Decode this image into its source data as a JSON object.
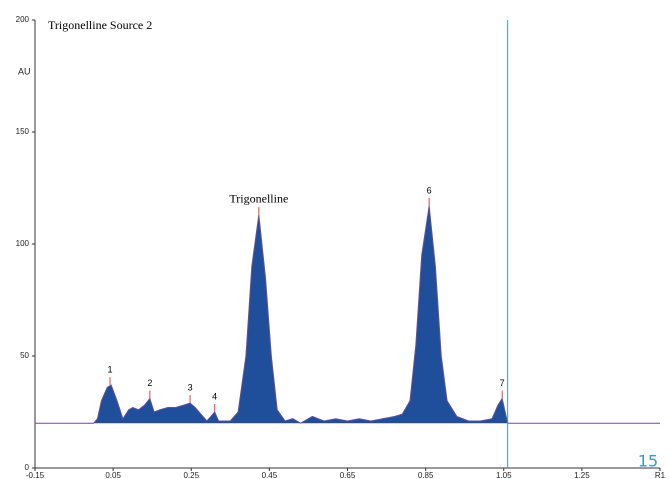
{
  "chart_data": {
    "type": "line",
    "title": "Trigonelline Source 2",
    "y_label": "AU",
    "xlim": [
      -0.15,
      1.45
    ],
    "ylim": [
      0,
      200
    ],
    "xticks": [
      -0.15,
      0.05,
      0.25,
      0.45,
      0.65,
      0.85,
      1.05,
      1.25,
      {
        "value": 1.45,
        "label": "R1"
      }
    ],
    "yticks": [
      0,
      50,
      100,
      150,
      200
    ],
    "color": "#6a4f8e",
    "fill_color": "#1f4f9a",
    "cursor": 1.06,
    "cursor_color": "#3a9ac4",
    "x": [
      -0.15,
      0.0,
      0.01,
      0.02,
      0.035,
      0.045,
      0.06,
      0.075,
      0.09,
      0.1,
      0.115,
      0.13,
      0.144,
      0.155,
      0.17,
      0.19,
      0.21,
      0.23,
      0.247,
      0.26,
      0.275,
      0.29,
      0.31,
      0.32,
      0.35,
      0.37,
      0.39,
      0.405,
      0.423,
      0.44,
      0.455,
      0.47,
      0.49,
      0.51,
      0.53,
      0.56,
      0.59,
      0.62,
      0.65,
      0.68,
      0.71,
      0.74,
      0.77,
      0.79,
      0.81,
      0.825,
      0.84,
      0.859,
      0.875,
      0.89,
      0.905,
      0.93,
      0.96,
      0.99,
      1.02,
      1.035,
      1.046,
      1.06,
      1.45
    ],
    "values": [
      20,
      20,
      22,
      30,
      36,
      37,
      30,
      22,
      26,
      27,
      26,
      28,
      31,
      25,
      26,
      27,
      27,
      28,
      29,
      27,
      24,
      21,
      25,
      21,
      21,
      25,
      50,
      90,
      113,
      85,
      50,
      26,
      21,
      22,
      20,
      23,
      21,
      22,
      21,
      22,
      21,
      22,
      23,
      24,
      30,
      55,
      95,
      117,
      90,
      50,
      30,
      23,
      21,
      21,
      22,
      28,
      31,
      20,
      20
    ],
    "peaks": [
      {
        "label": "1",
        "x": 0.042,
        "value": 37
      },
      {
        "label": "2",
        "x": 0.144,
        "value": 31
      },
      {
        "label": "3",
        "x": 0.247,
        "value": 29
      },
      {
        "label": "4",
        "x": 0.31,
        "value": 25
      },
      {
        "label": "Trigonelline",
        "x": 0.423,
        "value": 113
      },
      {
        "label": "6",
        "x": 0.859,
        "value": 117
      },
      {
        "label": "7",
        "x": 1.046,
        "value": 31
      }
    ]
  },
  "page_number": "15"
}
